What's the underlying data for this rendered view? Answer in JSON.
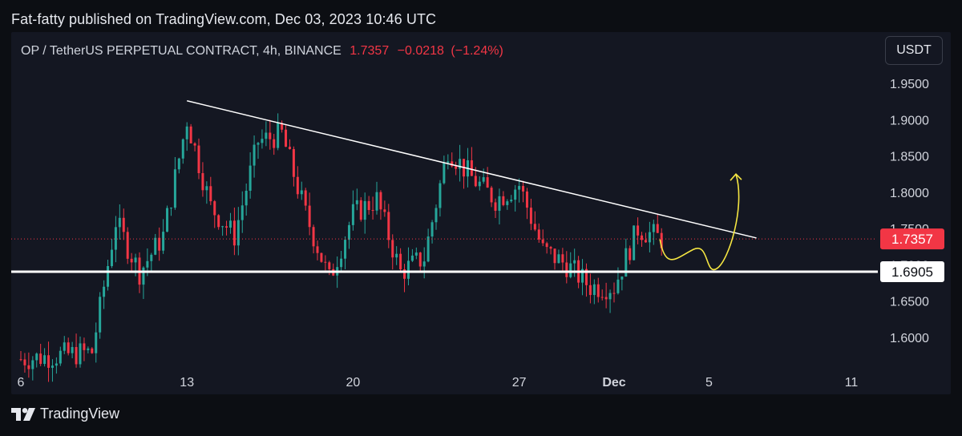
{
  "header": {
    "publisher_line": "Fat-fatty published on TradingView.com, Dec 03, 2023 10:46 UTC"
  },
  "symbol": {
    "name": "OP / TetherUS PERPETUAL CONTRACT, 4h, BINANCE",
    "last": "1.7357",
    "change": "−0.0218",
    "change_pct": "(−1.24%)"
  },
  "currency_button": "USDT",
  "footer": {
    "brand": "TradingView"
  },
  "colors": {
    "up": "#26a69a",
    "down": "#f23645",
    "trendline": "#ffffff",
    "support": "#ffffff",
    "projection": "#f5e642",
    "price_line": "#f23645"
  },
  "chart_data": {
    "type": "candlestick",
    "y_range": [
      1.56,
      1.97
    ],
    "y_ticks": [
      "1.9500",
      "1.9000",
      "1.8500",
      "1.8000",
      "1.7500",
      "1.7000",
      "1.6500",
      "1.6000"
    ],
    "x_ticks": [
      "6",
      "13",
      "20",
      "27",
      "Dec",
      "5",
      "11"
    ],
    "price_line": {
      "value": 1.7357,
      "label": "1.7357"
    },
    "support_line": {
      "value": 1.6905,
      "label": "1.6905"
    },
    "trendline": {
      "from_date": "Nov 13",
      "from_value": 1.926,
      "to_date": "Dec 7",
      "to_value": 1.737
    },
    "price_path": [
      [
        "Nov 6",
        1.57
      ],
      [
        "Nov 9",
        1.58
      ],
      [
        "Nov 10",
        1.76
      ],
      [
        "Nov 11",
        1.69
      ],
      [
        "Nov 12",
        1.74
      ],
      [
        "Nov 13",
        1.9
      ],
      [
        "Nov 14",
        1.78
      ],
      [
        "Nov 15",
        1.74
      ],
      [
        "Nov 16",
        1.87
      ],
      [
        "Nov 17",
        1.88
      ],
      [
        "Nov 18",
        1.77
      ],
      [
        "Nov 19",
        1.68
      ],
      [
        "Nov 20",
        1.77
      ],
      [
        "Nov 21",
        1.79
      ],
      [
        "Nov 22",
        1.69
      ],
      [
        "Nov 23",
        1.71
      ],
      [
        "Nov 24",
        1.86
      ],
      [
        "Nov 25",
        1.82
      ],
      [
        "Nov 26",
        1.79
      ],
      [
        "Nov 27",
        1.81
      ],
      [
        "Nov 28",
        1.72
      ],
      [
        "Nov 29",
        1.7
      ],
      [
        "Nov 30",
        1.67
      ],
      [
        "Dec 1",
        1.67
      ],
      [
        "Dec 2",
        1.75
      ],
      [
        "Dec 3",
        1.7357
      ]
    ],
    "projection": [
      [
        "Dec 3",
        1.735
      ],
      [
        "Dec 4",
        1.73
      ],
      [
        "Dec 5",
        1.695
      ],
      [
        "Dec 6",
        1.825
      ]
    ]
  }
}
